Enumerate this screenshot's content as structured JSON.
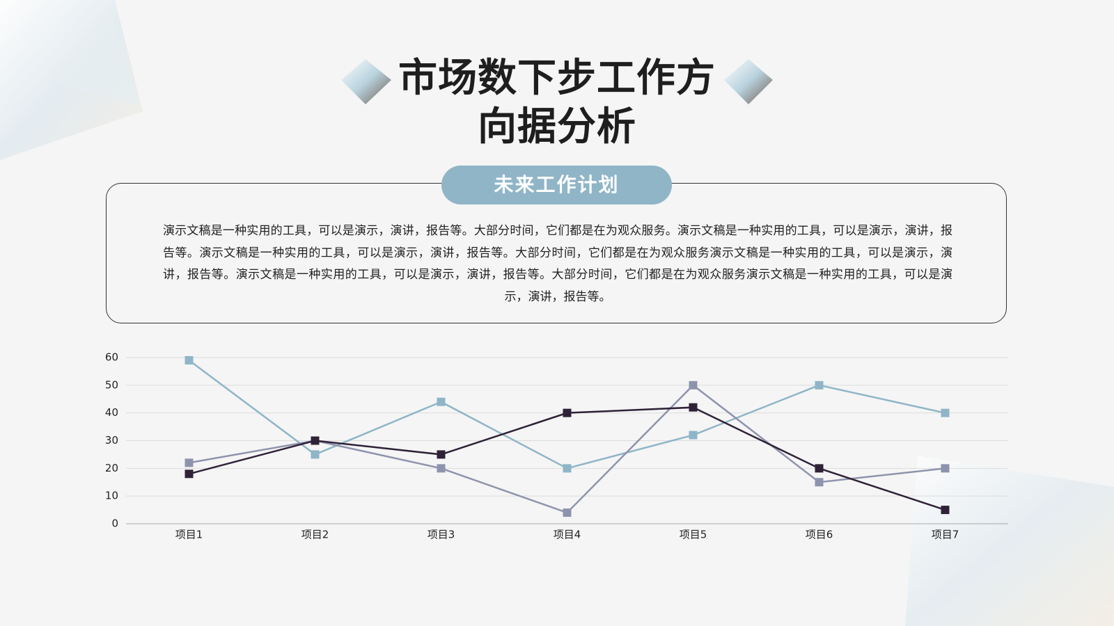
{
  "header": {
    "title": "市场数下步工作方向据分析"
  },
  "section": {
    "label": "未来工作计划",
    "paragraph": "演示文稿是一种实用的工具，可以是演示，演讲，报告等。大部分时间，它们都是在为观众服务。演示文稿是一种实用的工具，可以是演示，演讲，报告等。演示文稿是一种实用的工具，可以是演示，演讲，报告等。大部分时间，它们都是在为观众服务演示文稿是一种实用的工具，可以是演示，演讲，报告等。演示文稿是一种实用的工具，可以是演示，演讲，报告等。大部分时间，它们都是在为观众服务演示文稿是一种实用的工具，可以是演示，演讲，报告等。"
  },
  "chart_data": {
    "type": "line",
    "categories": [
      "项目1",
      "项目2",
      "项目3",
      "项目4",
      "项目5",
      "项目6",
      "项目7"
    ],
    "series": [
      {
        "color": "#8fb5c7",
        "values": [
          59,
          25,
          44,
          20,
          32,
          50,
          40
        ]
      },
      {
        "color": "#8e93ad",
        "values": [
          22,
          30,
          20,
          4,
          50,
          15,
          20
        ]
      },
      {
        "color": "#2f2238",
        "values": [
          18,
          30,
          25,
          40,
          42,
          20,
          5
        ]
      }
    ],
    "ylim": [
      0,
      60
    ],
    "yticks": [
      0,
      10,
      20,
      30,
      40,
      50,
      60
    ],
    "grid": true
  }
}
